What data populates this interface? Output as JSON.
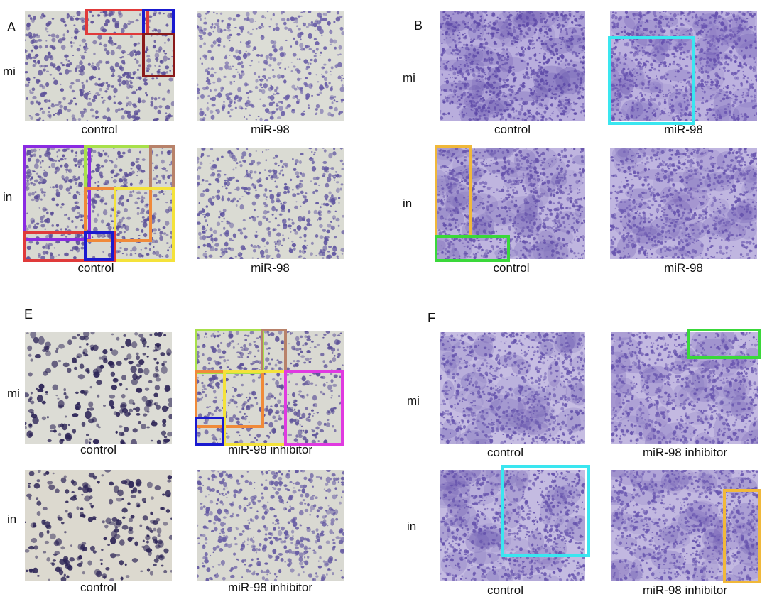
{
  "panels": [
    {
      "id": "A",
      "label": "A",
      "rows": [
        {
          "label": "mi",
          "captions": [
            "control",
            "miR-98"
          ]
        },
        {
          "label": "in",
          "captions": [
            "control",
            "miR-98"
          ]
        }
      ]
    },
    {
      "id": "B",
      "label": "B",
      "rows": [
        {
          "label": "mi",
          "captions": [
            "control",
            "miR-98"
          ]
        },
        {
          "label": "in",
          "captions": [
            "control",
            "miR-98"
          ]
        }
      ]
    },
    {
      "id": "E",
      "label": "E",
      "rows": [
        {
          "label": "mi",
          "captions": [
            "control",
            "miR-98   inhibitor"
          ]
        },
        {
          "label": "in",
          "captions": [
            "control",
            "miR-98   inhibitor"
          ]
        }
      ]
    },
    {
      "id": "F",
      "label": "F",
      "rows": [
        {
          "label": "mi",
          "captions": [
            "control",
            "miR-98   inhibitor"
          ]
        },
        {
          "label": "in",
          "captions": [
            "control",
            "miR-98   inhibitor"
          ]
        }
      ]
    }
  ],
  "colors": {
    "stain_light_bg": "#d8d8cf",
    "stain_dark_bg": "#b8aedb",
    "cell_purple": "#5a4a9a",
    "cell_dark": "#2a2450",
    "highlight_red": "#e03030",
    "highlight_blue": "#1a1ad0",
    "highlight_maroon": "#8a1a1a",
    "highlight_purple": "#8a2be2",
    "highlight_lime": "#a8e04a",
    "highlight_tan": "#b8826a",
    "highlight_orange": "#f08a3a",
    "highlight_yellow": "#f4e23a",
    "highlight_cyan": "#3ae6f0",
    "highlight_gold": "#f0b83a",
    "highlight_green": "#3ad83a",
    "highlight_magenta": "#e03ae0"
  }
}
